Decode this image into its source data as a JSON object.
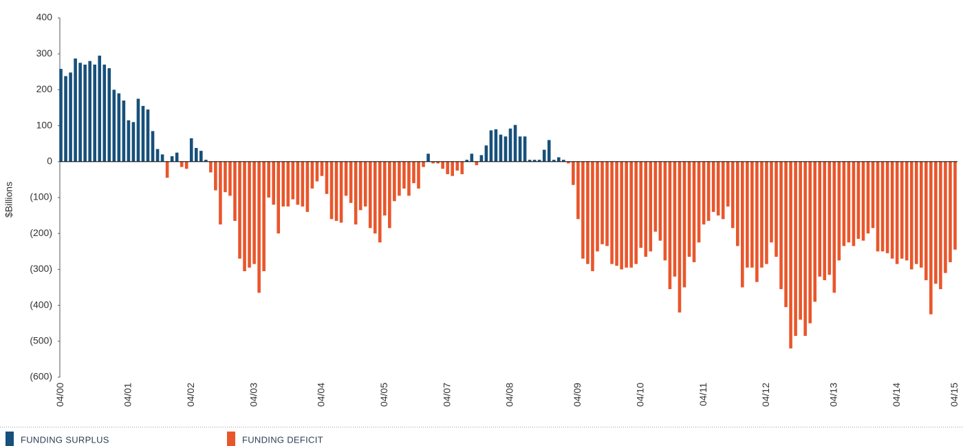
{
  "chart_data": {
    "type": "bar",
    "y_label": "$Billions",
    "legend": [
      {
        "name": "FUNDING SURPLUS",
        "color": "#17507b"
      },
      {
        "name": "FUNDING DEFICIT",
        "color": "#e9562b"
      }
    ],
    "categories": [
      "04/00",
      null,
      null,
      null,
      null,
      null,
      null,
      null,
      null,
      null,
      null,
      null,
      null,
      null,
      "04/01",
      null,
      null,
      null,
      null,
      null,
      null,
      null,
      null,
      null,
      null,
      null,
      null,
      "04/02",
      null,
      null,
      null,
      null,
      null,
      null,
      null,
      null,
      null,
      null,
      null,
      null,
      "04/03",
      null,
      null,
      null,
      null,
      null,
      null,
      null,
      null,
      null,
      null,
      null,
      null,
      null,
      "04/04",
      null,
      null,
      null,
      null,
      null,
      null,
      null,
      null,
      null,
      null,
      null,
      null,
      "04/05",
      null,
      null,
      null,
      null,
      null,
      null,
      null,
      null,
      null,
      null,
      null,
      null,
      "04/07",
      null,
      null,
      null,
      null,
      null,
      null,
      null,
      null,
      null,
      null,
      null,
      null,
      "04/08",
      null,
      null,
      null,
      null,
      null,
      null,
      null,
      null,
      null,
      null,
      null,
      null,
      null,
      "04/09",
      null,
      null,
      null,
      null,
      null,
      null,
      null,
      null,
      null,
      null,
      null,
      null,
      "04/10",
      null,
      null,
      null,
      null,
      null,
      null,
      null,
      null,
      null,
      null,
      null,
      null,
      "04/11",
      null,
      null,
      null,
      null,
      null,
      null,
      null,
      null,
      null,
      null,
      null,
      null,
      "04/12",
      null,
      null,
      null,
      null,
      null,
      null,
      null,
      null,
      null,
      null,
      null,
      null,
      null,
      "04/13",
      null,
      null,
      null,
      null,
      null,
      null,
      null,
      null,
      null,
      null,
      null,
      null,
      "04/14",
      null,
      null,
      null,
      null,
      null,
      null,
      null,
      null,
      null,
      null,
      null,
      "04/15"
    ],
    "values": [
      258,
      238,
      248,
      287,
      275,
      270,
      280,
      270,
      295,
      270,
      260,
      200,
      190,
      170,
      115,
      110,
      175,
      155,
      145,
      85,
      35,
      20,
      -45,
      15,
      25,
      -15,
      -20,
      65,
      38,
      30,
      5,
      -30,
      -80,
      -175,
      -85,
      -95,
      -165,
      -270,
      -305,
      -295,
      -285,
      -365,
      -305,
      -100,
      -120,
      -200,
      -125,
      -125,
      -105,
      -120,
      -125,
      -140,
      -75,
      -55,
      -40,
      -90,
      -160,
      -165,
      -170,
      -95,
      -115,
      -175,
      -135,
      -125,
      -185,
      -200,
      -225,
      -150,
      -185,
      -110,
      -95,
      -75,
      -95,
      -60,
      -75,
      -15,
      22,
      -5,
      -5,
      -20,
      -35,
      -40,
      -25,
      -35,
      5,
      22,
      -10,
      18,
      45,
      87,
      90,
      75,
      70,
      92,
      102,
      70,
      70,
      5,
      5,
      5,
      33,
      60,
      5,
      12,
      5,
      -5,
      -65,
      -160,
      -270,
      -285,
      -305,
      -250,
      -230,
      -235,
      -285,
      -290,
      -300,
      -295,
      -295,
      -285,
      -240,
      -265,
      -250,
      -195,
      -220,
      -275,
      -355,
      -320,
      -420,
      -350,
      -265,
      -280,
      -225,
      -175,
      -165,
      -140,
      -150,
      -160,
      -125,
      -185,
      -235,
      -350,
      -295,
      -295,
      -335,
      -295,
      -285,
      -225,
      -265,
      -355,
      -405,
      -520,
      -485,
      -440,
      -485,
      -450,
      -390,
      -320,
      -330,
      -315,
      -365,
      -275,
      -235,
      -225,
      -235,
      -215,
      -220,
      -200,
      -185,
      -250,
      -250,
      -255,
      -270,
      -285,
      -270,
      -275,
      -300,
      -285,
      -295,
      -330,
      -425,
      -340,
      -355,
      -310,
      -280,
      -245
    ],
    "ylim": [
      -600,
      400
    ],
    "yticks": [
      {
        "value": -600,
        "label": "(600)"
      },
      {
        "value": -500,
        "label": "(500)"
      },
      {
        "value": -400,
        "label": "(400)"
      },
      {
        "value": -300,
        "label": "(300)"
      },
      {
        "value": -200,
        "label": "(200)"
      },
      {
        "value": -100,
        "label": "(100)"
      },
      0,
      100,
      200,
      300,
      400
    ]
  }
}
